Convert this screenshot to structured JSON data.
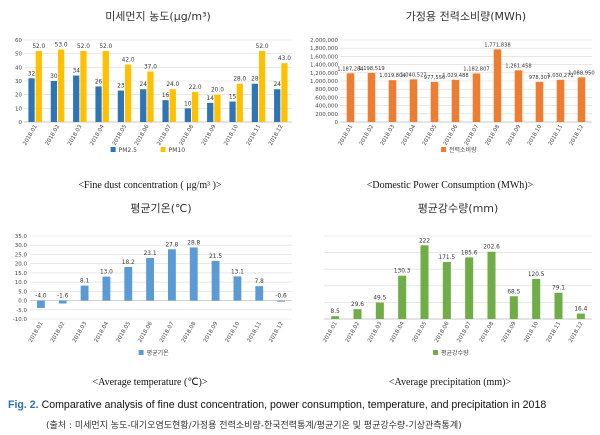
{
  "chart_data": [
    {
      "type": "bar",
      "title": "미세먼지 농도(μg/m³)",
      "categories": [
        "2018.01",
        "2018.02",
        "2018.03",
        "2018.04",
        "2018.05",
        "2018.06",
        "2018.07",
        "2018.08",
        "2018.09",
        "2018.10",
        "2018.11",
        "2018.12"
      ],
      "series": [
        {
          "name": "PM2.5",
          "color": "#2e75b6",
          "values": [
            32,
            30,
            34,
            26,
            23,
            24,
            16,
            10,
            14,
            15,
            28,
            24
          ],
          "labels": [
            "32",
            "30",
            "34",
            "26",
            "23",
            "24",
            "16",
            "10",
            "14",
            "15",
            "28",
            "24"
          ]
        },
        {
          "name": "PM10",
          "color": "#ffc000",
          "values": [
            52,
            53,
            52,
            52,
            42,
            37,
            24,
            22,
            20,
            28,
            52,
            43
          ],
          "labels": [
            "52.0",
            "53.0",
            "52.0",
            "52.0",
            "42.0",
            "37.0",
            "24.0",
            "22.0",
            "20.0",
            "28.0",
            "52.0",
            "43.0"
          ]
        }
      ],
      "ylim": [
        0,
        60
      ],
      "yticks": [
        "0",
        "10",
        "20",
        "30",
        "40",
        "50",
        "60"
      ],
      "grid": true,
      "legend": "bottom",
      "caption": "<Fine dust concentration ( μg/m³ )>"
    },
    {
      "type": "bar",
      "title": "가정용 전력소비량(MWh)",
      "categories": [
        "2018.01",
        "2018.02",
        "2018.03",
        "2018.04",
        "2018.05",
        "2018.06",
        "2018.07",
        "2018.08",
        "2018.09",
        "2018.10",
        "2018.11",
        "2018.12"
      ],
      "series": [
        {
          "name": "전력소비량",
          "color": "#ed7d31",
          "values": [
            1187284,
            1198519,
            1019804,
            1040527,
            977556,
            1029488,
            1182807,
            1771838,
            1261458,
            978307,
            1030272,
            1088950
          ],
          "labels": [
            "1,187,284",
            "1,198,519",
            "1,019,804",
            "1,040,527",
            "977,556",
            "1,029,488",
            "1,182,807",
            "1,771,838",
            "1,261,458",
            "978,307",
            "1,030,272",
            "1,088,950"
          ]
        }
      ],
      "ylim": [
        0,
        2000000
      ],
      "yticks": [
        "0",
        "200,000",
        "400,000",
        "600,000",
        "800,000",
        "1,000,000",
        "1,200,000",
        "1,400,000",
        "1,600,000",
        "1,800,000",
        "2,000,000"
      ],
      "grid": true,
      "legend": "bottom",
      "caption": "<Domestic Power Consumption (MWh)>"
    },
    {
      "type": "bar",
      "title": "평균기온(℃)",
      "categories": [
        "2018.01",
        "2018.02",
        "2018.03",
        "2018.04",
        "2018.05",
        "2018.06",
        "2018.07",
        "2018.08",
        "2018.09",
        "2018.10",
        "2018.11",
        "2018.12"
      ],
      "series": [
        {
          "name": "평균기온",
          "color": "#5b9bd5",
          "values": [
            -4.0,
            -1.6,
            8.1,
            13.0,
            18.2,
            23.1,
            27.8,
            28.8,
            21.5,
            13.1,
            7.8,
            -0.6
          ],
          "labels": [
            "-4.0",
            "-1.6",
            "8.1",
            "13.0",
            "18.2",
            "23.1",
            "27.8",
            "28.8",
            "21.5",
            "13.1",
            "7.8",
            "-0.6"
          ]
        }
      ],
      "ylim": [
        -10,
        35
      ],
      "yticks": [
        "-10.0",
        "-5.0",
        "0.0",
        "5.0",
        "10.0",
        "15.0",
        "20.0",
        "25.0",
        "30.0",
        "35.0"
      ],
      "grid": true,
      "legend": "bottom",
      "caption": "<Average temperature (℃)>"
    },
    {
      "type": "bar",
      "title": "평균강수량(mm)",
      "categories": [
        "2018.01",
        "2018.02",
        "2018.03",
        "2018.04",
        "2018.05",
        "2018.06",
        "2018.07",
        "2018.08",
        "2018.09",
        "2018.10",
        "2018.11",
        "2018.12"
      ],
      "series": [
        {
          "name": "평균강수량",
          "color": "#70ad47",
          "values": [
            8.5,
            29.6,
            49.5,
            130.3,
            222,
            171.5,
            185.6,
            202.6,
            68.5,
            120.5,
            79.1,
            16.4
          ],
          "labels": [
            "8.5",
            "29.6",
            "49.5",
            "130.3",
            "222",
            "171.5",
            "185.6",
            "202.6",
            "68.5",
            "120.5",
            "79.1",
            "16.4"
          ]
        }
      ],
      "ylim": [
        0,
        250
      ],
      "yticks": [],
      "grid": true,
      "legend": "bottom",
      "caption": "<Average precipitation (mm)>"
    }
  ],
  "figure": {
    "label": "Fig. 2.",
    "text": "Comparative analysis of fine dust concentration, power consumption, temperature, and precipitation in 2018",
    "source": "(출처 : 미세먼지 농도-대기오염도현황/가정용 전력소비량-한국전력통계/평균기온 및 평균강수량-기상관측통계)"
  }
}
